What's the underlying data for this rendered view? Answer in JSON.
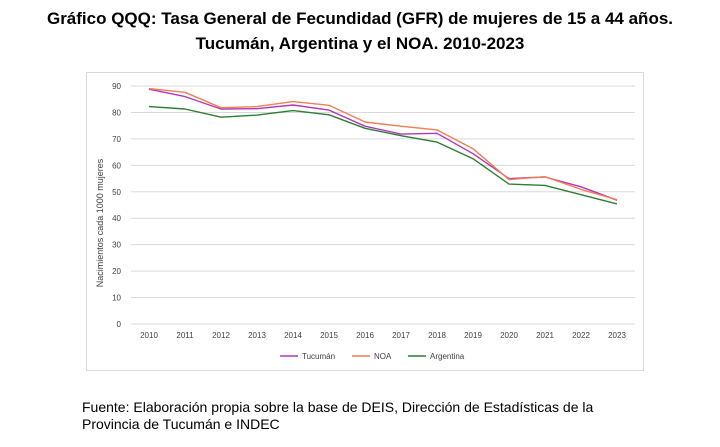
{
  "title": {
    "line1": "Gráfico QQQ: Tasa General de Fecundidad (GFR) de mujeres de 15 a 44 años.",
    "line2": "Tucumán, Argentina y el NOA. 2010-2023"
  },
  "source": {
    "line1": "Fuente: Elaboración propia sobre la base de DEIS, Dirección de Estadísticas de la",
    "line2": "Provincia de Tucumán e INDEC"
  },
  "chart_data": {
    "type": "line",
    "ylabel": "Nacimientos cada 1000 mujeres",
    "xlabel": "",
    "ylim": [
      0,
      90
    ],
    "yticks": [
      0,
      10,
      20,
      30,
      40,
      50,
      60,
      70,
      80,
      90
    ],
    "grid": true,
    "legend": "bottom",
    "categories": [
      "2010",
      "2011",
      "2012",
      "2013",
      "2014",
      "2015",
      "2016",
      "2017",
      "2018",
      "2019",
      "2020",
      "2021",
      "2022",
      "2023"
    ],
    "series": [
      {
        "name": "Tucumán",
        "color": "#b03ab6",
        "values": [
          88.8,
          86.0,
          81.3,
          81.4,
          82.8,
          80.9,
          74.8,
          71.8,
          72.1,
          64.4,
          55.0,
          55.6,
          51.9,
          46.8
        ]
      },
      {
        "name": "NOA",
        "color": "#f07f54",
        "values": [
          89.0,
          87.6,
          81.8,
          82.2,
          84.1,
          82.7,
          76.4,
          74.8,
          73.4,
          66.3,
          54.6,
          55.7,
          50.9,
          47.0
        ]
      },
      {
        "name": "Argentina",
        "color": "#2e7d32",
        "values": [
          82.2,
          81.3,
          78.2,
          79.0,
          80.7,
          79.1,
          74.0,
          71.2,
          68.8,
          62.5,
          52.9,
          52.4,
          48.9,
          45.4
        ]
      }
    ]
  }
}
